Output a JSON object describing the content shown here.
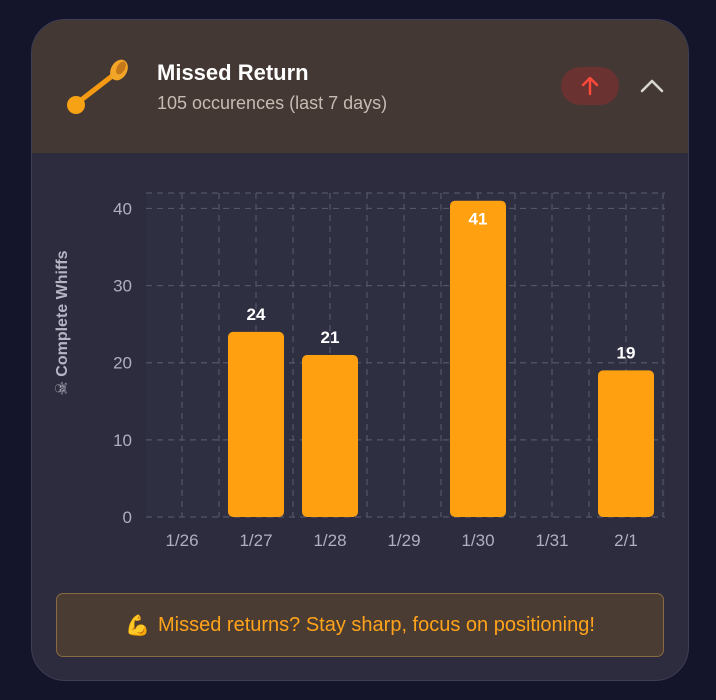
{
  "card": {
    "title": "Missed Return",
    "subtitle": "105 occurences (last 7 days)",
    "icon": "racket-icon",
    "trend_icon": "arrow-up-icon",
    "collapse_icon": "chevron-up-icon"
  },
  "chart_data": {
    "type": "bar",
    "categories": [
      "1/26",
      "1/27",
      "1/28",
      "1/29",
      "1/30",
      "1/31",
      "2/1"
    ],
    "values": [
      0,
      24,
      21,
      0,
      41,
      0,
      19
    ],
    "data_labels": [
      "",
      "24",
      "21",
      "",
      "41",
      "",
      "19"
    ],
    "ylabel_icon": "☠",
    "ylabel": "Complete Whiffs",
    "yticks": [
      "0",
      "10",
      "20",
      "30",
      "40"
    ],
    "ylim": [
      0,
      42
    ],
    "grid": true,
    "colors": {
      "bar": "#ffa010",
      "grid": "#55556a",
      "plot_bg": "#2f2f42"
    }
  },
  "banner": {
    "emoji": "💪",
    "text": "Missed returns? Stay sharp, focus on positioning!"
  },
  "colors": {
    "accent": "#ffa31a",
    "trend_badge": "#6a3230",
    "trend_arrow": "#ff4a3a"
  }
}
